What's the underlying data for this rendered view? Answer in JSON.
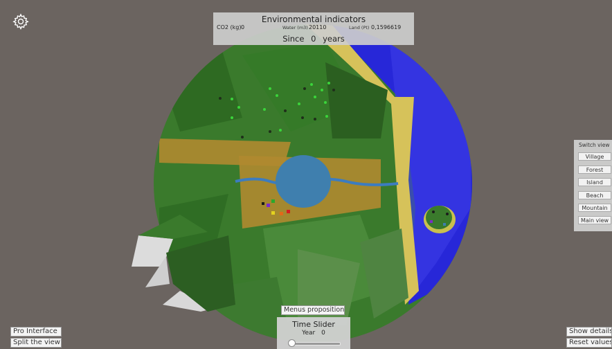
{
  "env": {
    "title": "Environmental indicators",
    "co2_label": "CO2 (kg)",
    "co2_value": "0",
    "water_label": "Water (m3)",
    "water_value": "20110",
    "land_label": "Land (Pt)",
    "land_value": "0,1596619",
    "since_label": "Since",
    "since_value": "0",
    "since_unit": "years"
  },
  "switch_view": {
    "title": "Switch view",
    "buttons": [
      "Village",
      "Forest",
      "Island",
      "Beach",
      "Mountain",
      "Main view"
    ]
  },
  "left_buttons": {
    "pro_interface": "Pro Interface",
    "split_view": "Split the view"
  },
  "right_buttons": {
    "show_details": "Show details",
    "reset_values": "Reset values"
  },
  "menus_propositions": "Menus propositions",
  "time_slider": {
    "title": "Time Slider",
    "year_label": "Year",
    "year_value": "0",
    "position": 0
  },
  "icons": {
    "settings": "gear-icon"
  },
  "colors": {
    "background": "#6b6460",
    "grass": "#3a7a2c",
    "ocean": "#2a2ae0",
    "sand": "#d6c25a",
    "lake": "#3f7fae",
    "fields": "#b08a30"
  }
}
